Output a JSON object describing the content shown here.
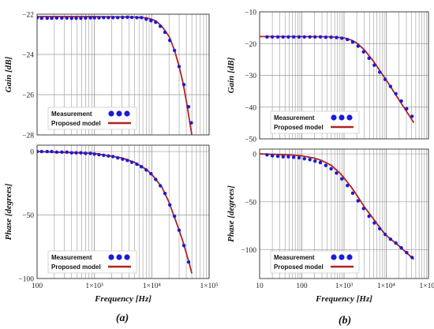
{
  "chart_data": [
    {
      "type": "line",
      "panel": "a",
      "name": "gain-a",
      "ylabel": "Gain [dB]",
      "xlabel": "",
      "xscale": "log",
      "xlim": [
        100,
        100000
      ],
      "ylim": [
        -28,
        -22
      ],
      "xticks": [],
      "yticks": [
        -22,
        -24,
        -26,
        -28
      ],
      "ytick_labels": [
        "−22",
        "−24",
        "−26",
        "−28"
      ],
      "legend": {
        "placement": "bottom-left",
        "entries": [
          "Measurement",
          "Proposed model"
        ]
      },
      "series": [
        {
          "name": "Measurement",
          "marker": "dot",
          "x": [
            100,
            120,
            150,
            180,
            220,
            270,
            330,
            400,
            480,
            580,
            700,
            850,
            1000,
            1200,
            1450,
            1750,
            2100,
            2550,
            3100,
            3750,
            4500,
            5500,
            6600,
            8000,
            9700,
            11700,
            14100,
            17000,
            20600,
            24900,
            30000,
            36300,
            43900,
            49000
          ],
          "y": [
            -22.18,
            -22.2,
            -22.2,
            -22.2,
            -22.19,
            -22.19,
            -22.19,
            -22.2,
            -22.2,
            -22.2,
            -22.19,
            -22.18,
            -22.18,
            -22.18,
            -22.17,
            -22.17,
            -22.17,
            -22.17,
            -22.16,
            -22.15,
            -22.16,
            -22.17,
            -22.17,
            -22.25,
            -22.32,
            -22.4,
            -22.6,
            -22.9,
            -23.3,
            -23.8,
            -24.6,
            -25.5,
            -26.6,
            -27.4
          ]
        },
        {
          "name": "Proposed model",
          "marker": "line",
          "x": [
            100,
            1000,
            5000,
            8000,
            10000,
            12000,
            15000,
            20000,
            25000,
            30000,
            35000,
            40000,
            45000,
            50000
          ],
          "y": [
            -22.12,
            -22.12,
            -22.14,
            -22.18,
            -22.25,
            -22.35,
            -22.6,
            -23.1,
            -23.8,
            -24.6,
            -25.4,
            -26.3,
            -27.2,
            -28.0
          ]
        }
      ]
    },
    {
      "type": "line",
      "panel": "a",
      "name": "phase-a",
      "ylabel": "Phase [degrees]",
      "xlabel": "Frequency [Hz]",
      "xscale": "log",
      "xlim": [
        100,
        100000
      ],
      "ylim": [
        -100,
        5
      ],
      "xticks": [
        100,
        1000,
        10000,
        100000
      ],
      "xtick_labels": [
        "100",
        "1×10³",
        "1×10⁴",
        "1×10⁵"
      ],
      "yticks": [
        0,
        -50,
        -100
      ],
      "ytick_labels": [
        "0",
        "−50",
        "−100"
      ],
      "legend": {
        "placement": "bottom-left",
        "entries": [
          "Measurement",
          "Proposed model"
        ]
      },
      "series": [
        {
          "name": "Measurement",
          "marker": "dot",
          "x": [
            100,
            120,
            150,
            180,
            220,
            270,
            330,
            400,
            480,
            580,
            700,
            850,
            1000,
            1200,
            1450,
            1750,
            2100,
            2550,
            3100,
            3750,
            4500,
            5500,
            6600,
            8000,
            9700,
            11700,
            14100,
            17000,
            20600,
            24900,
            30000,
            36300,
            43900
          ],
          "y": [
            0,
            0,
            0,
            0,
            -0.5,
            -0.5,
            -0.5,
            -1,
            -1,
            -1,
            -1.5,
            -1.5,
            -2,
            -2.5,
            -3,
            -3.5,
            -4,
            -5,
            -6,
            -7,
            -8.5,
            -10,
            -12,
            -14.5,
            -17.5,
            -22,
            -27,
            -33,
            -42,
            -51,
            -62,
            -74,
            -87
          ]
        },
        {
          "name": "Proposed model",
          "marker": "line",
          "x": [
            100,
            1000,
            3000,
            5000,
            8000,
            10000,
            15000,
            20000,
            25000,
            30000,
            35000,
            40000,
            45000,
            50000
          ],
          "y": [
            0,
            -1.5,
            -5,
            -8.5,
            -14,
            -18,
            -28,
            -40,
            -52,
            -62,
            -71,
            -80,
            -88,
            -96
          ]
        }
      ]
    },
    {
      "type": "line",
      "panel": "b",
      "name": "gain-b",
      "ylabel": "Gain [dB]",
      "xlabel": "",
      "xscale": "log",
      "xlim": [
        10,
        100000
      ],
      "ylim": [
        -50,
        -10
      ],
      "xticks": [],
      "yticks": [
        -10,
        -20,
        -30,
        -40,
        -50
      ],
      "ytick_labels": [
        "−10",
        "−20",
        "−30",
        "−40",
        "−50"
      ],
      "legend": {
        "placement": "bottom-left",
        "entries": [
          "Measurement",
          "Proposed model"
        ]
      },
      "series": [
        {
          "name": "Measurement",
          "marker": "dot",
          "x": [
            15,
            20,
            27,
            36,
            48,
            64,
            86,
            115,
            155,
            205,
            275,
            370,
            495,
            665,
            890,
            1200,
            1600,
            2150,
            2900,
            3900,
            5200,
            7000,
            9400,
            12600,
            16900,
            22700,
            30400,
            40800
          ],
          "y": [
            -17.9,
            -17.9,
            -17.9,
            -17.9,
            -17.9,
            -17.9,
            -17.9,
            -17.9,
            -17.9,
            -17.9,
            -17.9,
            -18.0,
            -18.0,
            -18.1,
            -18.3,
            -18.7,
            -19.5,
            -20.8,
            -22.6,
            -24.6,
            -26.8,
            -29.0,
            -31.3,
            -33.5,
            -35.8,
            -38.1,
            -40.5,
            -42.9
          ]
        },
        {
          "name": "Proposed model",
          "marker": "line",
          "x": [
            10,
            100,
            500,
            1000,
            1500,
            2000,
            3000,
            5000,
            8000,
            10000,
            20000,
            30000,
            45000
          ],
          "y": [
            -17.8,
            -17.8,
            -17.85,
            -18.2,
            -18.9,
            -19.8,
            -21.9,
            -25.6,
            -29.6,
            -31.5,
            -37.7,
            -41.3,
            -44.9
          ]
        }
      ]
    },
    {
      "type": "line",
      "panel": "b",
      "name": "phase-b",
      "ylabel": "Phase [degrees]",
      "xlabel": "Frequency [Hz]",
      "xscale": "log",
      "xlim": [
        10,
        100000
      ],
      "ylim": [
        -130,
        5
      ],
      "xticks": [
        10,
        100,
        1000,
        10000,
        100000
      ],
      "xtick_labels": [
        "10",
        "100",
        "1×10³",
        "1×10⁴",
        "1×10⁵"
      ],
      "yticks": [
        0,
        -50,
        -100
      ],
      "ytick_labels": [
        "0",
        "−50",
        "−100"
      ],
      "legend": {
        "placement": "bottom-left",
        "entries": [
          "Measurement",
          "Proposed model"
        ]
      },
      "series": [
        {
          "name": "Measurement",
          "marker": "dot",
          "x": [
            15,
            20,
            27,
            36,
            48,
            64,
            86,
            115,
            155,
            205,
            275,
            370,
            495,
            665,
            890,
            1200,
            1600,
            2150,
            2900,
            3900,
            5200,
            7000,
            9400,
            12600,
            16900,
            22700,
            30400,
            40800
          ],
          "y": [
            -1,
            -2,
            -2.5,
            -3,
            -3,
            -3.5,
            -4,
            -5,
            -6,
            -7.5,
            -9,
            -12,
            -15.5,
            -20,
            -26,
            -33,
            -41,
            -49,
            -57,
            -65,
            -72,
            -78,
            -84,
            -89,
            -93,
            -98,
            -103,
            -108
          ]
        },
        {
          "name": "Proposed model",
          "marker": "line",
          "x": [
            10,
            50,
            100,
            200,
            300,
            500,
            800,
            1000,
            1500,
            2000,
            3000,
            5000,
            8000,
            10000,
            20000,
            30000,
            45000
          ],
          "y": [
            0,
            -1,
            -2,
            -4.5,
            -7,
            -12,
            -20,
            -25,
            -35,
            -43,
            -55,
            -68,
            -80,
            -85,
            -96,
            -103,
            -110
          ]
        }
      ]
    }
  ],
  "panel_labels": {
    "a": "(a)",
    "b": "(b)"
  },
  "colors": {
    "measurement": "#1a1adb",
    "model": "#b22222",
    "grid": "#9a9a9a",
    "axis": "#333333"
  }
}
